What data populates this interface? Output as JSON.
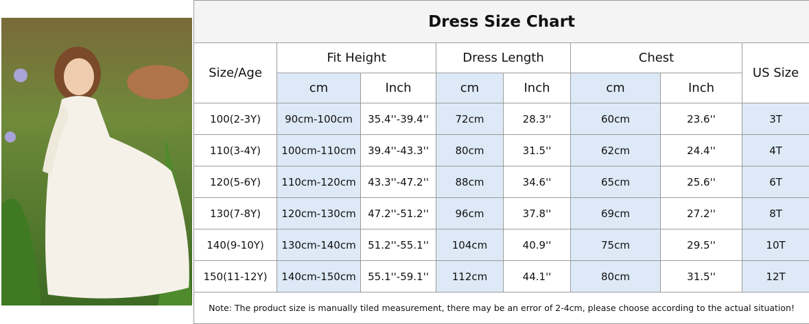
{
  "title": "Dress Size Chart",
  "header": {
    "size_age": "Size/Age",
    "groups": [
      "Fit Height",
      "Dress Length",
      "Chest"
    ],
    "us_size": "US Size",
    "units": [
      "cm",
      "Inch",
      "cm",
      "Inch",
      "cm",
      "Inch"
    ]
  },
  "rows": [
    [
      "100(2-3Y)",
      "90cm-100cm",
      "35.4''-39.4''",
      "72cm",
      "28.3''",
      "60cm",
      "23.6''",
      "3T"
    ],
    [
      "110(3-4Y)",
      "100cm-110cm",
      "39.4''-43.3''",
      "80cm",
      "31.5''",
      "62cm",
      "24.4''",
      "4T"
    ],
    [
      "120(5-6Y)",
      "110cm-120cm",
      "43.3''-47.2''",
      "88cm",
      "34.6''",
      "65cm",
      "25.6''",
      "6T"
    ],
    [
      "130(7-8Y)",
      "120cm-130cm",
      "47.2''-51.2''",
      "96cm",
      "37.8''",
      "69cm",
      "27.2''",
      "8T"
    ],
    [
      "140(9-10Y)",
      "130cm-140cm",
      "51.2''-55.1''",
      "104cm",
      "40.9''",
      "75cm",
      "29.5''",
      "10T"
    ],
    [
      "150(11-12Y)",
      "140cm-150cm",
      "55.1''-59.1''",
      "112cm",
      "44.1''",
      "80cm",
      "31.5''",
      "12T"
    ]
  ],
  "note": "Note: The product size is manually tiled measurement, there may be an error of 2-4cm, please choose according to the actual situation!"
}
